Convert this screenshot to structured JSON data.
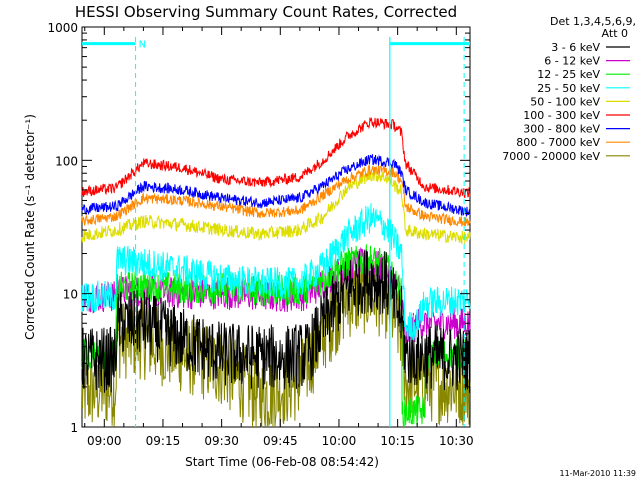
{
  "chart_data": {
    "type": "line",
    "title": "HESSI Observing Summary Count Rates, Corrected",
    "xlabel": "Start Time (06-Feb-08 08:54:42)",
    "ylabel": "Corrected Count Rate (s⁻¹ detector⁻¹)",
    "yscale": "log",
    "ylim": [
      1,
      1000
    ],
    "xlim_min": [
      -5.7,
      93.5
    ],
    "x_unit": "minutes after 09:00",
    "x_ticks": [
      {
        "label": "09:00",
        "value": 0
      },
      {
        "label": "09:15",
        "value": 15
      },
      {
        "label": "09:30",
        "value": 30
      },
      {
        "label": "09:45",
        "value": 45
      },
      {
        "label": "10:00",
        "value": 60
      },
      {
        "label": "10:15",
        "value": 75
      },
      {
        "label": "10:30",
        "value": 90
      }
    ],
    "y_ticks": [
      {
        "label": "1",
        "value": 1
      },
      {
        "label": "10",
        "value": 10
      },
      {
        "label": "100",
        "value": 100
      },
      {
        "label": "1000",
        "value": 1000
      }
    ],
    "legend": {
      "header": [
        "Det 1,3,4,5,6,9,",
        "Att 0"
      ],
      "placement": "right"
    },
    "series": [
      {
        "name": "3 - 6 keV",
        "color": "#000000",
        "noise": 0.25,
        "points": [
          [
            -5.7,
            3.2
          ],
          [
            3,
            3.2
          ],
          [
            3.1,
            6
          ],
          [
            10,
            6
          ],
          [
            20,
            4.5
          ],
          [
            30,
            3.5
          ],
          [
            45,
            3.3
          ],
          [
            52,
            3.5
          ],
          [
            56,
            6
          ],
          [
            62,
            11
          ],
          [
            68,
            13
          ],
          [
            72,
            12
          ],
          [
            76,
            6.5
          ],
          [
            77,
            3.5
          ],
          [
            93.5,
            3.2
          ]
        ]
      },
      {
        "name": "6 - 12 keV",
        "color": "#cc00cc",
        "noise": 0.12,
        "points": [
          [
            -5.7,
            9.5
          ],
          [
            3,
            9.5
          ],
          [
            3.1,
            10.5
          ],
          [
            10,
            10.5
          ],
          [
            20,
            10
          ],
          [
            30,
            10
          ],
          [
            45,
            9.5
          ],
          [
            52,
            9.8
          ],
          [
            56,
            12
          ],
          [
            62,
            16
          ],
          [
            68,
            17
          ],
          [
            72,
            15
          ],
          [
            76,
            10
          ],
          [
            77,
            4.5
          ],
          [
            80,
            6
          ],
          [
            93.5,
            6
          ]
        ]
      },
      {
        "name": "12 - 25 keV",
        "color": "#00ee00",
        "noise": 0.12,
        "points": [
          [
            -5.7,
            3.5
          ],
          [
            3,
            3.5
          ],
          [
            3.1,
            11
          ],
          [
            10,
            11.5
          ],
          [
            20,
            11
          ],
          [
            30,
            11
          ],
          [
            45,
            10.5
          ],
          [
            52,
            11
          ],
          [
            56,
            13
          ],
          [
            62,
            17
          ],
          [
            68,
            18
          ],
          [
            72,
            16
          ],
          [
            76,
            10
          ],
          [
            76.1,
            1.3
          ],
          [
            82,
            1.3
          ],
          [
            82.1,
            3.5
          ],
          [
            93.5,
            3.5
          ]
        ]
      },
      {
        "name": "25 - 50 keV",
        "color": "#00ffff",
        "noise": 0.12,
        "points": [
          [
            -5.7,
            9.5
          ],
          [
            3,
            9.5
          ],
          [
            3.1,
            18
          ],
          [
            10,
            17
          ],
          [
            20,
            15
          ],
          [
            30,
            13
          ],
          [
            40,
            12
          ],
          [
            50,
            12
          ],
          [
            56,
            16
          ],
          [
            62,
            27
          ],
          [
            68,
            37
          ],
          [
            72,
            32
          ],
          [
            76,
            20
          ],
          [
            77,
            5.5
          ],
          [
            80,
            6
          ],
          [
            82,
            8.5
          ],
          [
            93.5,
            9
          ]
        ]
      },
      {
        "name": "50 - 100 keV",
        "color": "#dddd00",
        "noise": 0.05,
        "points": [
          [
            -5.7,
            27
          ],
          [
            3,
            30
          ],
          [
            10,
            35
          ],
          [
            20,
            33
          ],
          [
            30,
            30
          ],
          [
            40,
            28
          ],
          [
            50,
            30
          ],
          [
            56,
            38
          ],
          [
            62,
            62
          ],
          [
            68,
            78
          ],
          [
            72,
            75
          ],
          [
            76,
            58
          ],
          [
            77,
            30
          ],
          [
            82,
            28
          ],
          [
            93.5,
            26
          ]
        ]
      },
      {
        "name": "100 - 300 keV",
        "color": "#ff0000",
        "noise": 0.04,
        "points": [
          [
            -5.7,
            58
          ],
          [
            3,
            62
          ],
          [
            10,
            95
          ],
          [
            20,
            88
          ],
          [
            30,
            72
          ],
          [
            40,
            68
          ],
          [
            50,
            75
          ],
          [
            56,
            100
          ],
          [
            62,
            150
          ],
          [
            68,
            195
          ],
          [
            74,
            185
          ],
          [
            76,
            160
          ],
          [
            77,
            95
          ],
          [
            82,
            63
          ],
          [
            93.5,
            57
          ]
        ]
      },
      {
        "name": "300 - 800 keV",
        "color": "#0000ff",
        "noise": 0.04,
        "points": [
          [
            -5.7,
            43
          ],
          [
            3,
            45
          ],
          [
            10,
            64
          ],
          [
            20,
            60
          ],
          [
            30,
            52
          ],
          [
            40,
            48
          ],
          [
            50,
            52
          ],
          [
            56,
            65
          ],
          [
            62,
            85
          ],
          [
            68,
            102
          ],
          [
            74,
            96
          ],
          [
            76,
            80
          ],
          [
            77,
            60
          ],
          [
            82,
            48
          ],
          [
            93.5,
            41
          ]
        ]
      },
      {
        "name": "800 - 7000 keV",
        "color": "#ff8800",
        "noise": 0.04,
        "points": [
          [
            -5.7,
            35
          ],
          [
            3,
            38
          ],
          [
            10,
            52
          ],
          [
            20,
            50
          ],
          [
            30,
            45
          ],
          [
            40,
            40
          ],
          [
            50,
            42
          ],
          [
            56,
            55
          ],
          [
            62,
            72
          ],
          [
            68,
            85
          ],
          [
            74,
            82
          ],
          [
            76,
            70
          ],
          [
            77,
            45
          ],
          [
            82,
            38
          ],
          [
            93.5,
            34
          ]
        ]
      },
      {
        "name": "7000 - 20000 keV",
        "color": "#888800",
        "noise": 0.3,
        "points": [
          [
            -5.7,
            1.8
          ],
          [
            3,
            2
          ],
          [
            3.1,
            4.5
          ],
          [
            10,
            4.5
          ],
          [
            20,
            3.5
          ],
          [
            30,
            2.8
          ],
          [
            40,
            1.7
          ],
          [
            50,
            2.2
          ],
          [
            56,
            5
          ],
          [
            62,
            9
          ],
          [
            68,
            10
          ],
          [
            72,
            9
          ],
          [
            76,
            5
          ],
          [
            77,
            2.2
          ],
          [
            93.5,
            2
          ]
        ]
      }
    ],
    "annotations": {
      "flag_bars": [
        {
          "label": "N",
          "color": "#00ffff",
          "segments": [
            [
              -5.7,
              8
            ],
            [
              73,
              93.5
            ]
          ],
          "level": 750
        }
      ],
      "vertical_dashed": [
        {
          "x": 8,
          "color": "#00ffff"
        },
        {
          "x": 92,
          "color": "#00ffff"
        }
      ],
      "vertical_solid": [
        {
          "x": 73,
          "color": "#00ffff"
        }
      ]
    },
    "grid": false
  },
  "footer": {
    "timestamp": "11-Mar-2010 11:39"
  }
}
